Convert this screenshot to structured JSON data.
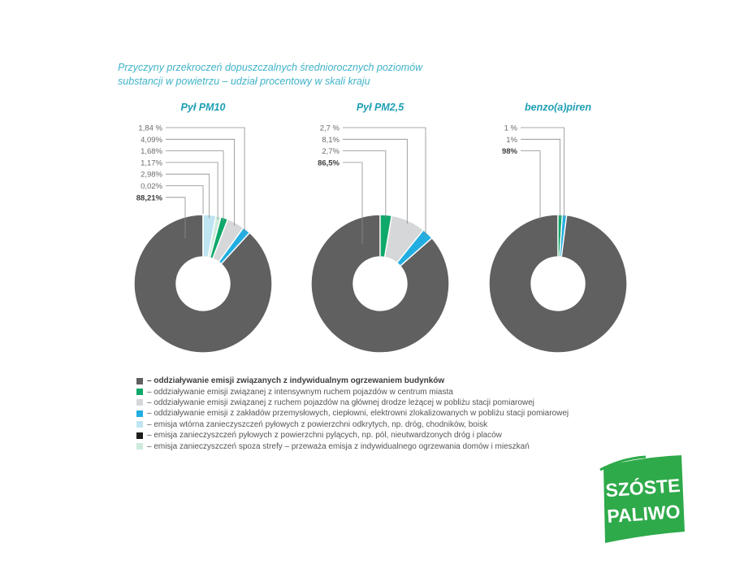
{
  "title_lines": [
    "Przyczyny przekroczeń dopuszczalnych średniorocznych poziomów",
    "substancji w powietrzu – udział procentowy w skali kraju"
  ],
  "colors": {
    "title": "#3fb3c8",
    "chart_title": "#1f9fb4",
    "categories": [
      "#606060",
      "#0fa86b",
      "#d6d7d9",
      "#22aee0",
      "#bfe4f2",
      "#1d1d1b",
      "#cdebdc"
    ]
  },
  "chart_data": [
    {
      "type": "pie",
      "variant": "donut",
      "title": "Pył PM10",
      "slices": [
        {
          "category": 0,
          "value": 88.21,
          "label": "88,21%",
          "bold": true
        },
        {
          "category": 5,
          "value": 0.02,
          "label": "0,02%"
        },
        {
          "category": 4,
          "value": 2.98,
          "label": "2,98%"
        },
        {
          "category": 6,
          "value": 1.17,
          "label": "1,17%"
        },
        {
          "category": 1,
          "value": 1.68,
          "label": "1,68%"
        },
        {
          "category": 2,
          "value": 4.09,
          "label": "4,09%"
        },
        {
          "category": 3,
          "value": 1.84,
          "label": "1,84 %"
        }
      ]
    },
    {
      "type": "pie",
      "variant": "donut",
      "title": "Pył PM2,5",
      "slices": [
        {
          "category": 0,
          "value": 86.5,
          "label": "86,5%",
          "bold": true
        },
        {
          "category": 1,
          "value": 2.7,
          "label": "2,7%"
        },
        {
          "category": 2,
          "value": 8.1,
          "label": "8,1%"
        },
        {
          "category": 3,
          "value": 2.7,
          "label": "2,7 %"
        }
      ]
    },
    {
      "type": "pie",
      "variant": "donut",
      "title": "benzo(a)piren",
      "slices": [
        {
          "category": 0,
          "value": 98,
          "label": "98%",
          "bold": true
        },
        {
          "category": 1,
          "value": 1,
          "label": "1%"
        },
        {
          "category": 3,
          "value": 1,
          "label": "1 %"
        }
      ]
    }
  ],
  "legend": [
    {
      "text": "– oddziaływanie emisji związanych z indywidualnym ogrzewaniem budynków",
      "bold": true
    },
    {
      "text": "– oddziaływanie emisji związanej z intensywnym ruchem pojazdów w centrum miasta",
      "bold": false
    },
    {
      "text": "– oddziaływanie emisji związanej z ruchem pojazdów na głównej drodze leżącej w pobliżu stacji pomiarowej",
      "bold": false
    },
    {
      "text": "– oddziaływanie emisji z zakładów przemysłowych, ciepłowni, elektrowni zlokalizowanych w pobliżu stacji pomiarowej",
      "bold": false
    },
    {
      "text": "– emisja wtórna zanieczyszczeń pyłowych z powierzchni odkrytych, np. dróg, chodników, boisk",
      "bold": false
    },
    {
      "text": "– emisja zanieczyszczeń pyłowych z powierzchni pylących, np. pól, nieutwardzonych dróg i placów",
      "bold": false
    },
    {
      "text": "– emisja zanieczyszczeń spoza strefy – przeważa emisja z indywidualnego ogrzewania domów i mieszkań",
      "bold": false
    }
  ],
  "logo": {
    "line1": "SZÓSTE",
    "line2": "PALIWO",
    "color": "#2eaa4a"
  }
}
